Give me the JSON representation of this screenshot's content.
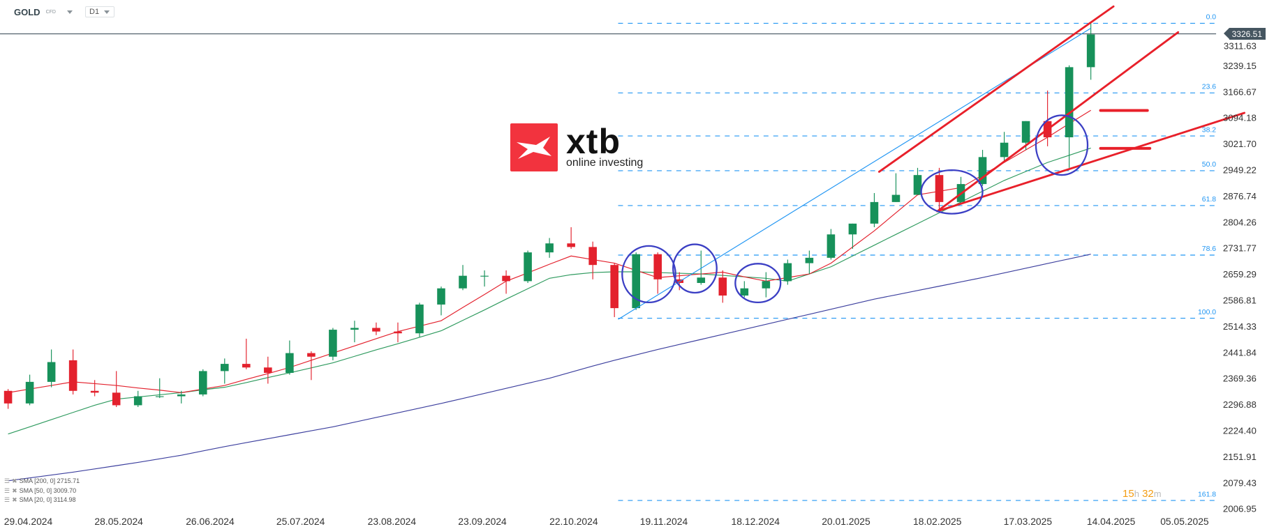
{
  "header": {
    "symbol": "GOLD",
    "instrument_type": "CFD",
    "timeframe": "D1"
  },
  "current_price": "3326.51",
  "timer": {
    "hours": "15",
    "hours_unit": "h",
    "minutes": "32",
    "minutes_unit": "m"
  },
  "logo": {
    "name": "xtb",
    "tagline": "online investing"
  },
  "legend": [
    {
      "label": "SMA [200, 0] 2715.71",
      "color": "#3c3f9e"
    },
    {
      "label": "SMA [50, 0] 3009.70",
      "color": "#2e9a5e"
    },
    {
      "label": "SMA [20, 0] 3114.98",
      "color": "#e3212d"
    }
  ],
  "colors": {
    "up": "#17915a",
    "down": "#e3212d",
    "fib": "#2196f3",
    "trendline": "#e8202a",
    "ellipse": "#3b3fc4",
    "sma200": "#3c3f9e",
    "sma50": "#2e9a5e",
    "sma20": "#e3212d"
  },
  "chart_data": {
    "type": "candlestick",
    "timeframe_of_data": "weekly approximation of daily chart",
    "y_ticks": [
      "3311.63",
      "3239.15",
      "3166.67",
      "3094.18",
      "3021.70",
      "2949.22",
      "2876.74",
      "2804.26",
      "2731.77",
      "2659.29",
      "2586.81",
      "2514.33",
      "2441.84",
      "2369.36",
      "2296.88",
      "2224.40",
      "2151.91",
      "2079.43",
      "2006.95"
    ],
    "x_ticks": [
      "29.04.2024",
      "28.05.2024",
      "26.06.2024",
      "25.07.2024",
      "23.08.2024",
      "23.09.2024",
      "22.10.2024",
      "19.11.2024",
      "18.12.2024",
      "20.01.2025",
      "18.02.2025",
      "17.03.2025",
      "14.04.2025",
      "05.05.2025"
    ],
    "ylim": [
      2006.95,
      3357
    ],
    "grid": false,
    "candles": [
      [
        2335,
        2340,
        2285,
        2300
      ],
      [
        2300,
        2380,
        2295,
        2360
      ],
      [
        2360,
        2450,
        2345,
        2415
      ],
      [
        2420,
        2450,
        2325,
        2335
      ],
      [
        2335,
        2365,
        2320,
        2330
      ],
      [
        2330,
        2390,
        2290,
        2295
      ],
      [
        2295,
        2335,
        2290,
        2320
      ],
      [
        2320,
        2370,
        2315,
        2320
      ],
      [
        2320,
        2335,
        2300,
        2325
      ],
      [
        2325,
        2395,
        2320,
        2390
      ],
      [
        2390,
        2425,
        2355,
        2410
      ],
      [
        2410,
        2480,
        2395,
        2400
      ],
      [
        2400,
        2430,
        2355,
        2385
      ],
      [
        2385,
        2475,
        2380,
        2440
      ],
      [
        2440,
        2445,
        2365,
        2430
      ],
      [
        2430,
        2510,
        2420,
        2505
      ],
      [
        2505,
        2530,
        2470,
        2510
      ],
      [
        2510,
        2525,
        2490,
        2500
      ],
      [
        2500,
        2525,
        2470,
        2495
      ],
      [
        2495,
        2580,
        2485,
        2575
      ],
      [
        2575,
        2625,
        2545,
        2620
      ],
      [
        2620,
        2685,
        2615,
        2655
      ],
      [
        2655,
        2670,
        2625,
        2655
      ],
      [
        2655,
        2670,
        2605,
        2640
      ],
      [
        2640,
        2725,
        2635,
        2720
      ],
      [
        2720,
        2760,
        2705,
        2745
      ],
      [
        2745,
        2790,
        2730,
        2735
      ],
      [
        2735,
        2750,
        2645,
        2685
      ],
      [
        2685,
        2690,
        2540,
        2565
      ],
      [
        2565,
        2720,
        2560,
        2715
      ],
      [
        2715,
        2720,
        2605,
        2645
      ],
      [
        2645,
        2665,
        2615,
        2635
      ],
      [
        2635,
        2725,
        2630,
        2650
      ],
      [
        2650,
        2670,
        2580,
        2600
      ],
      [
        2600,
        2640,
        2595,
        2620
      ],
      [
        2620,
        2665,
        2595,
        2640
      ],
      [
        2640,
        2700,
        2630,
        2690
      ],
      [
        2690,
        2725,
        2660,
        2705
      ],
      [
        2705,
        2785,
        2700,
        2770
      ],
      [
        2770,
        2800,
        2730,
        2800
      ],
      [
        2800,
        2885,
        2790,
        2860
      ],
      [
        2860,
        2940,
        2860,
        2880
      ],
      [
        2880,
        2955,
        2880,
        2935
      ],
      [
        2935,
        2955,
        2835,
        2860
      ],
      [
        2860,
        2930,
        2855,
        2910
      ],
      [
        2910,
        3005,
        2905,
        2985
      ],
      [
        2985,
        3055,
        2975,
        3025
      ],
      [
        3025,
        3085,
        3005,
        3085
      ],
      [
        3085,
        3170,
        3015,
        3040
      ],
      [
        3040,
        3240,
        2955,
        3235
      ],
      [
        3235,
        3357,
        3200,
        3326
      ]
    ],
    "series": [
      {
        "name": "SMA [200, 0]",
        "values": [
          2085,
          2093,
          2101,
          2109,
          2118,
          2127,
          2136,
          2146,
          2156,
          2168,
          2180,
          2191,
          2202,
          2213,
          2224,
          2235,
          2248,
          2261,
          2274,
          2287,
          2300,
          2314,
          2328,
          2342,
          2356,
          2370,
          2387,
          2404,
          2420,
          2435,
          2450,
          2464,
          2478,
          2492,
          2506,
          2520,
          2534,
          2548,
          2562,
          2576,
          2590,
          2602,
          2614,
          2626,
          2638,
          2650,
          2663,
          2676,
          2689,
          2702,
          2715
        ]
      },
      {
        "name": "SMA [50, 0]",
        "values": [
          2215,
          2235,
          2255,
          2275,
          2295,
          2312,
          2318,
          2324,
          2330,
          2338,
          2345,
          2358,
          2372,
          2385,
          2399,
          2413,
          2431,
          2449,
          2466,
          2484,
          2502,
          2531,
          2560,
          2590,
          2619,
          2648,
          2658,
          2664,
          2666,
          2666,
          2664,
          2662,
          2660,
          2656,
          2652,
          2648,
          2640,
          2660,
          2680,
          2710,
          2740,
          2770,
          2800,
          2830,
          2860,
          2890,
          2920,
          2945,
          2970,
          2990,
          3010
        ]
      },
      {
        "name": "SMA [20, 0]",
        "values": [
          2330,
          2340,
          2350,
          2360,
          2355,
          2350,
          2343,
          2337,
          2330,
          2340,
          2350,
          2367,
          2383,
          2400,
          2420,
          2440,
          2460,
          2480,
          2500,
          2515,
          2530,
          2567,
          2603,
          2640,
          2663,
          2687,
          2710,
          2700,
          2690,
          2670,
          2650,
          2655,
          2660,
          2665,
          2652,
          2640,
          2650,
          2660,
          2690,
          2735,
          2780,
          2830,
          2880,
          2890,
          2900,
          2935,
          2970,
          3005,
          3040,
          3078,
          3115
        ]
      }
    ],
    "fibonacci": {
      "high": 3357,
      "low": 2537,
      "levels": [
        "0.0",
        "23.6",
        "38.2",
        "50.0",
        "61.8",
        "78.6",
        "100.0",
        "161.8"
      ],
      "ratios": [
        0,
        0.236,
        0.382,
        0.5,
        0.618,
        0.786,
        1.0,
        1.618
      ]
    }
  }
}
